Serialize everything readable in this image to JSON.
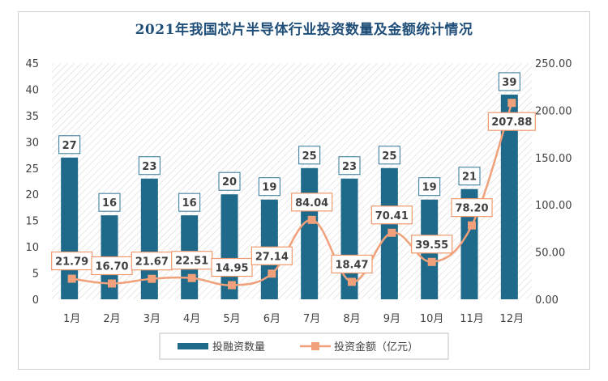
{
  "chart_data": {
    "type": "bar",
    "title": "2021年我国芯片半导体行业投资数量及金额统计情况",
    "categories": [
      "1月",
      "2月",
      "3月",
      "4月",
      "5月",
      "6月",
      "7月",
      "8月",
      "9月",
      "10月",
      "11月",
      "12月"
    ],
    "series": [
      {
        "name": "投融资数量",
        "type": "bar",
        "axis": "left",
        "color": "#1f6a8a",
        "values": [
          27,
          16,
          23,
          16,
          20,
          19,
          25,
          23,
          25,
          19,
          21,
          39
        ]
      },
      {
        "name": "投资金额（亿元）",
        "type": "line",
        "axis": "right",
        "color": "#f0a07a",
        "values": [
          21.79,
          16.7,
          21.67,
          22.51,
          14.95,
          27.14,
          84.04,
          18.47,
          70.41,
          39.55,
          78.2,
          207.88
        ]
      }
    ],
    "bar_labels": [
      "27",
      "16",
      "23",
      "16",
      "20",
      "19",
      "25",
      "23",
      "25",
      "19",
      "21",
      "39"
    ],
    "line_labels": [
      "21.79",
      "16.70",
      "21.67",
      "22.51",
      "14.95",
      "27.14",
      "84.04",
      "18.47",
      "70.41",
      "39.55",
      "78.20",
      "207.88"
    ],
    "left_axis": {
      "ylim": [
        0,
        45
      ],
      "ticks": [
        "0",
        "5",
        "10",
        "15",
        "20",
        "25",
        "30",
        "35",
        "40",
        "45"
      ]
    },
    "right_axis": {
      "ylim": [
        0,
        250
      ],
      "ticks": [
        "0.00",
        "50.00",
        "100.00",
        "150.00",
        "200.00",
        "250.00"
      ]
    },
    "legend_position": "bottom",
    "plot_background": "hatched"
  }
}
